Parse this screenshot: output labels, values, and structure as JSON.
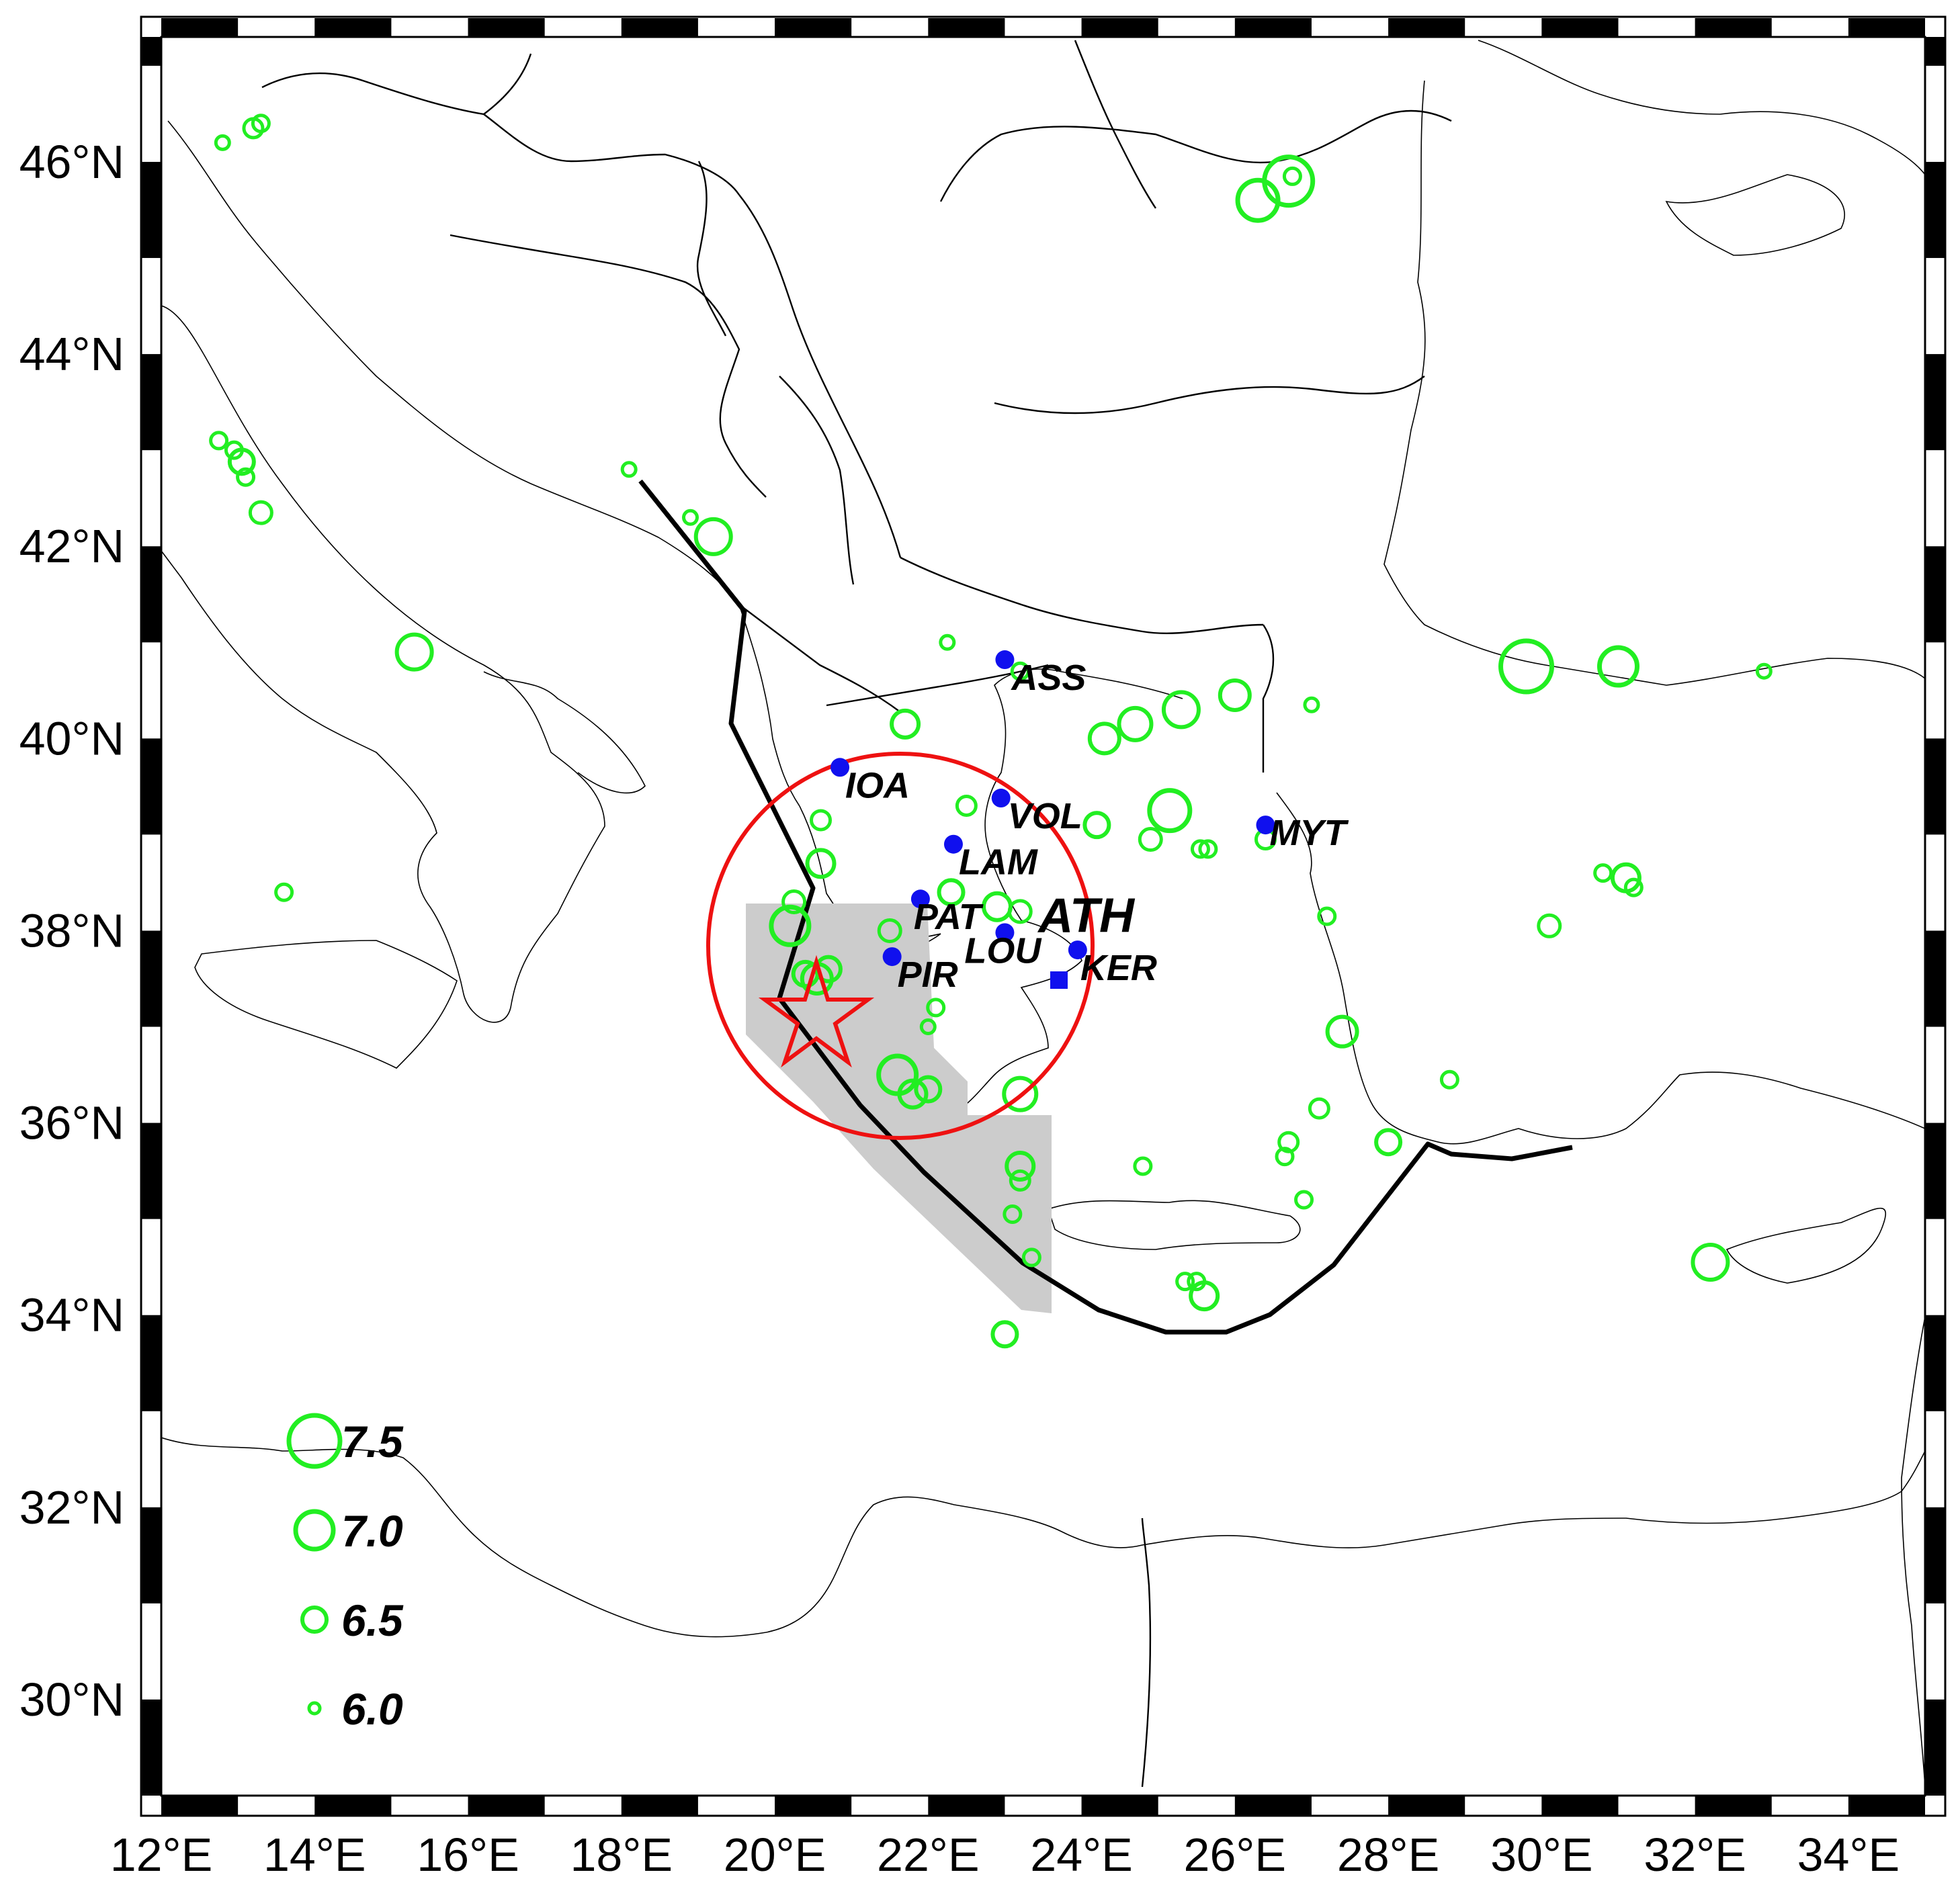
{
  "map": {
    "lon_range": [
      12,
      35
    ],
    "lat_range": [
      29,
      47.3
    ],
    "x_ticks": [
      "12°E",
      "14°E",
      "16°E",
      "18°E",
      "20°E",
      "22°E",
      "24°E",
      "26°E",
      "28°E",
      "30°E",
      "32°E",
      "34°E"
    ],
    "x_tick_values": [
      12,
      14,
      16,
      18,
      20,
      22,
      24,
      26,
      28,
      30,
      32,
      34
    ],
    "y_ticks": [
      "30°N",
      "32°N",
      "34°N",
      "36°N",
      "38°N",
      "40°N",
      "42°N",
      "44°N",
      "46°N"
    ],
    "y_tick_values": [
      30,
      32,
      34,
      36,
      38,
      40,
      42,
      44,
      46
    ]
  },
  "stations": [
    {
      "code": "ASS",
      "lon": 23.0,
      "lat": 40.82,
      "style": "normal"
    },
    {
      "code": "IOA",
      "lon": 20.85,
      "lat": 39.7,
      "style": "normal"
    },
    {
      "code": "VOL",
      "lon": 22.95,
      "lat": 39.38,
      "style": "normal"
    },
    {
      "code": "LAM",
      "lon": 22.33,
      "lat": 38.9,
      "style": "normal"
    },
    {
      "code": "PAT",
      "lon": 21.9,
      "lat": 38.33,
      "style": "normal"
    },
    {
      "code": "ATH",
      "lon": 23.7,
      "lat": 37.95,
      "style": "big"
    },
    {
      "code": "LOU",
      "lon": 23.0,
      "lat": 37.98,
      "style": "normal"
    },
    {
      "code": "PIR",
      "lon": 21.53,
      "lat": 37.73,
      "style": "normal"
    },
    {
      "code": "KER",
      "lon": 23.95,
      "lat": 37.8,
      "style": "normal"
    },
    {
      "code": "MYT",
      "lon": 26.4,
      "lat": 39.1,
      "style": "normal"
    }
  ],
  "legend": [
    {
      "label": "7.5",
      "mag": 7.5
    },
    {
      "label": "7.0",
      "mag": 7.0
    },
    {
      "label": "6.5",
      "mag": 6.5
    },
    {
      "label": "6.0",
      "mag": 6.0
    }
  ],
  "earthquakes": [
    {
      "lon": 12.8,
      "lat": 46.2,
      "mag": 6.1
    },
    {
      "lon": 13.2,
      "lat": 46.35,
      "mag": 6.3
    },
    {
      "lon": 13.3,
      "lat": 46.4,
      "mag": 6.2
    },
    {
      "lon": 12.75,
      "lat": 43.1,
      "mag": 6.2
    },
    {
      "lon": 12.95,
      "lat": 43.0,
      "mag": 6.2
    },
    {
      "lon": 13.05,
      "lat": 42.88,
      "mag": 6.5
    },
    {
      "lon": 13.1,
      "lat": 42.72,
      "mag": 6.2
    },
    {
      "lon": 13.3,
      "lat": 42.35,
      "mag": 6.4
    },
    {
      "lon": 15.3,
      "lat": 40.9,
      "mag": 6.9
    },
    {
      "lon": 13.6,
      "lat": 38.4,
      "mag": 6.2
    },
    {
      "lon": 18.1,
      "lat": 42.8,
      "mag": 6.1
    },
    {
      "lon": 18.9,
      "lat": 42.3,
      "mag": 6.1
    },
    {
      "lon": 19.2,
      "lat": 42.1,
      "mag": 6.9
    },
    {
      "lon": 22.25,
      "lat": 41.0,
      "mag": 6.1
    },
    {
      "lon": 21.7,
      "lat": 40.15,
      "mag": 6.6
    },
    {
      "lon": 20.6,
      "lat": 39.15,
      "mag": 6.3
    },
    {
      "lon": 20.6,
      "lat": 38.7,
      "mag": 6.6
    },
    {
      "lon": 20.25,
      "lat": 38.3,
      "mag": 6.4
    },
    {
      "lon": 20.2,
      "lat": 38.05,
      "mag": 7.0
    },
    {
      "lon": 20.4,
      "lat": 37.55,
      "mag": 6.5
    },
    {
      "lon": 20.55,
      "lat": 37.5,
      "mag": 6.7
    },
    {
      "lon": 20.7,
      "lat": 37.6,
      "mag": 6.5
    },
    {
      "lon": 21.5,
      "lat": 38.0,
      "mag": 6.4
    },
    {
      "lon": 22.3,
      "lat": 38.4,
      "mag": 6.5
    },
    {
      "lon": 22.5,
      "lat": 39.3,
      "mag": 6.3
    },
    {
      "lon": 22.9,
      "lat": 38.25,
      "mag": 6.6
    },
    {
      "lon": 23.2,
      "lat": 38.2,
      "mag": 6.4
    },
    {
      "lon": 22.1,
      "lat": 37.2,
      "mag": 6.2
    },
    {
      "lon": 22.0,
      "lat": 37.0,
      "mag": 6.1
    },
    {
      "lon": 21.6,
      "lat": 36.5,
      "mag": 7.0
    },
    {
      "lon": 21.8,
      "lat": 36.3,
      "mag": 6.6
    },
    {
      "lon": 22.0,
      "lat": 36.35,
      "mag": 6.5
    },
    {
      "lon": 23.2,
      "lat": 36.3,
      "mag": 6.8
    },
    {
      "lon": 23.2,
      "lat": 35.55,
      "mag": 6.6
    },
    {
      "lon": 23.2,
      "lat": 35.4,
      "mag": 6.3
    },
    {
      "lon": 23.1,
      "lat": 35.05,
      "mag": 6.2
    },
    {
      "lon": 23.35,
      "lat": 34.6,
      "mag": 6.2
    },
    {
      "lon": 23.0,
      "lat": 33.8,
      "mag": 6.5
    },
    {
      "lon": 23.2,
      "lat": 40.7,
      "mag": 6.2
    },
    {
      "lon": 24.3,
      "lat": 40.0,
      "mag": 6.7
    },
    {
      "lon": 24.7,
      "lat": 40.15,
      "mag": 6.8
    },
    {
      "lon": 25.3,
      "lat": 40.3,
      "mag": 6.9
    },
    {
      "lon": 25.15,
      "lat": 39.25,
      "mag": 7.1
    },
    {
      "lon": 24.2,
      "lat": 39.1,
      "mag": 6.5
    },
    {
      "lon": 24.9,
      "lat": 38.95,
      "mag": 6.4
    },
    {
      "lon": 25.55,
      "lat": 38.85,
      "mag": 6.2
    },
    {
      "lon": 25.65,
      "lat": 38.85,
      "mag": 6.2
    },
    {
      "lon": 26.4,
      "lat": 38.95,
      "mag": 6.3
    },
    {
      "lon": 26.0,
      "lat": 40.45,
      "mag": 6.7
    },
    {
      "lon": 27.0,
      "lat": 40.35,
      "mag": 6.1
    },
    {
      "lon": 26.3,
      "lat": 45.6,
      "mag": 7.1
    },
    {
      "lon": 26.7,
      "lat": 45.8,
      "mag": 7.4
    },
    {
      "lon": 26.75,
      "lat": 45.85,
      "mag": 6.2
    },
    {
      "lon": 29.8,
      "lat": 40.75,
      "mag": 7.5
    },
    {
      "lon": 31.0,
      "lat": 40.75,
      "mag": 7.0
    },
    {
      "lon": 32.9,
      "lat": 40.7,
      "mag": 6.1
    },
    {
      "lon": 27.2,
      "lat": 38.15,
      "mag": 6.2
    },
    {
      "lon": 27.4,
      "lat": 36.95,
      "mag": 6.7
    },
    {
      "lon": 30.1,
      "lat": 38.05,
      "mag": 6.4
    },
    {
      "lon": 30.8,
      "lat": 38.6,
      "mag": 6.2
    },
    {
      "lon": 31.1,
      "lat": 38.55,
      "mag": 6.6
    },
    {
      "lon": 31.2,
      "lat": 38.45,
      "mag": 6.2
    },
    {
      "lon": 24.8,
      "lat": 35.55,
      "mag": 6.2
    },
    {
      "lon": 25.35,
      "lat": 34.35,
      "mag": 6.2
    },
    {
      "lon": 25.5,
      "lat": 34.35,
      "mag": 6.2
    },
    {
      "lon": 25.6,
      "lat": 34.2,
      "mag": 6.6
    },
    {
      "lon": 26.7,
      "lat": 35.8,
      "mag": 6.3
    },
    {
      "lon": 26.65,
      "lat": 35.65,
      "mag": 6.2
    },
    {
      "lon": 26.9,
      "lat": 35.2,
      "mag": 6.2
    },
    {
      "lon": 27.1,
      "lat": 36.15,
      "mag": 6.3
    },
    {
      "lon": 28.0,
      "lat": 35.8,
      "mag": 6.5
    },
    {
      "lon": 28.8,
      "lat": 36.45,
      "mag": 6.2
    },
    {
      "lon": 32.2,
      "lat": 34.55,
      "mag": 6.9
    }
  ]
}
